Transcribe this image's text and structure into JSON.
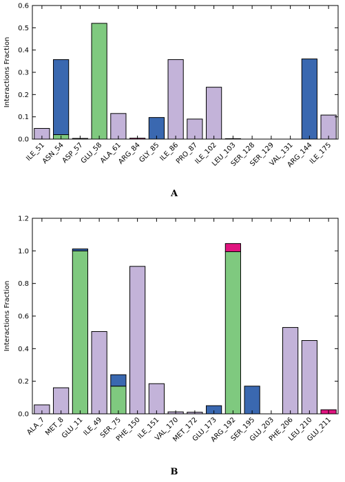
{
  "colors": {
    "hydrophobic": "#c3b3d9",
    "hbond": "#7fc97f",
    "water_bridge": "#3a68b0",
    "ionic": "#e0147f"
  },
  "chart_data": [
    {
      "type": "bar",
      "stacked": true,
      "panel_label": "A",
      "ylabel": "Interactions Fraction",
      "xlabel": "",
      "ylim": [
        0,
        0.6
      ],
      "yticks": [
        "0.0",
        "0.1",
        "0.2",
        "0.3",
        "0.4",
        "0.5",
        "0.6"
      ],
      "grid": false,
      "categories": [
        "ILE_51",
        "ASN_54",
        "ASP_57",
        "GLU_58",
        "ALA_61",
        "ARG_84",
        "GLY_85",
        "ILE_86",
        "PRO_87",
        "ILE_102",
        "LEU_103",
        "SER_128",
        "SER_129",
        "VAL_131",
        "ARG_144",
        "ILE_175"
      ],
      "series": [
        {
          "color": "#7fc97f",
          "values": [
            0,
            0.02,
            0.003,
            0.52,
            0,
            0,
            0,
            0,
            0,
            0,
            0,
            0,
            0,
            0,
            0,
            0
          ]
        },
        {
          "color": "#c3b3d9",
          "values": [
            0.048,
            0,
            0,
            0,
            0.115,
            0,
            0,
            0.357,
            0.09,
            0.233,
            0,
            0,
            0,
            0,
            0,
            0.108
          ]
        },
        {
          "color": "#3a68b0",
          "values": [
            0,
            0.337,
            0,
            0,
            0,
            0,
            0.097,
            0,
            0,
            0,
            0,
            0,
            0,
            0,
            0.36,
            0
          ]
        },
        {
          "color": "#e0147f",
          "values": [
            0,
            0,
            0,
            0,
            0,
            0.004,
            0,
            0,
            0,
            0,
            0.002,
            0,
            0,
            0,
            0,
            0
          ]
        }
      ]
    },
    {
      "type": "bar",
      "stacked": true,
      "panel_label": "B",
      "ylabel": "Interactions Fraction",
      "xlabel": "",
      "ylim": [
        0,
        1.2
      ],
      "yticks": [
        "0.0",
        "0.2",
        "0.4",
        "0.6",
        "0.8",
        "1.0",
        "1.2"
      ],
      "grid": false,
      "categories": [
        "ALA_7",
        "MET_8",
        "GLU_11",
        "ILE_49",
        "SER_75",
        "PHE_150",
        "ILE_151",
        "VAL_170",
        "MET_172",
        "GLU_173",
        "ARG_192",
        "SER_195",
        "GLU_203",
        "PHE_206",
        "LEU_210",
        "GLU_211"
      ],
      "series": [
        {
          "color": "#7fc97f",
          "values": [
            0,
            0,
            1.0,
            0,
            0.17,
            0,
            0,
            0,
            0,
            0,
            0.995,
            0,
            0,
            0,
            0,
            0
          ]
        },
        {
          "color": "#c3b3d9",
          "values": [
            0.055,
            0.16,
            0,
            0.505,
            0,
            0.905,
            0.185,
            0.012,
            0.01,
            0,
            0,
            0,
            0,
            0.53,
            0.45,
            0
          ]
        },
        {
          "color": "#3a68b0",
          "values": [
            0,
            0,
            0.012,
            0,
            0.07,
            0,
            0,
            0,
            0,
            0.05,
            0,
            0.17,
            0,
            0,
            0,
            0
          ]
        },
        {
          "color": "#e0147f",
          "values": [
            0,
            0,
            0,
            0,
            0,
            0,
            0,
            0,
            0,
            0,
            0.05,
            0,
            0,
            0,
            0,
            0.025
          ]
        }
      ]
    }
  ]
}
